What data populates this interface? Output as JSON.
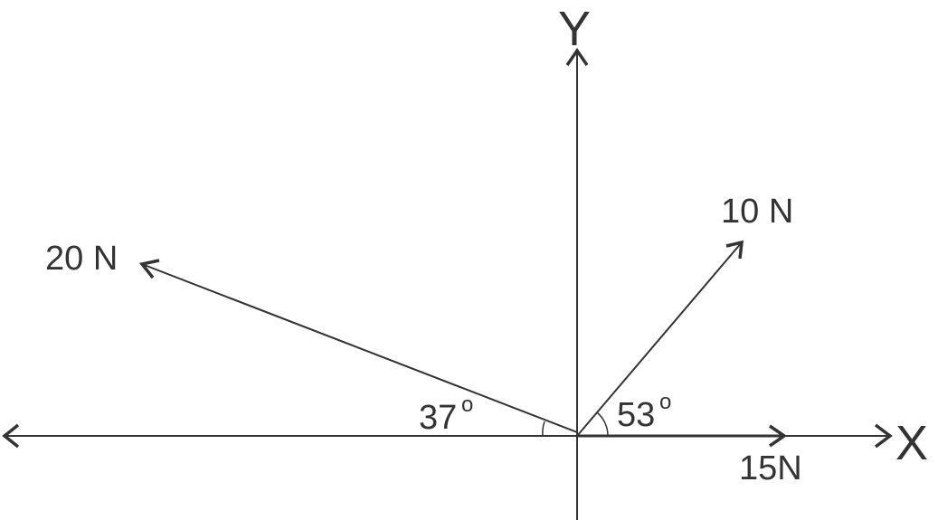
{
  "axes": {
    "x_label": "X",
    "y_label": "Y"
  },
  "forces": [
    {
      "label": "20 N",
      "magnitude_N": 20,
      "angle_label": "37",
      "angle_deg_from_negative_x": 37
    },
    {
      "label": "10 N",
      "magnitude_N": 10,
      "angle_label": "53",
      "angle_deg_from_positive_x": 53
    },
    {
      "label": "15N",
      "magnitude_N": 15,
      "direction": "positive x"
    }
  ],
  "degree_symbol": "o",
  "colors": {
    "line": "#333333",
    "background": "#ffffff"
  }
}
